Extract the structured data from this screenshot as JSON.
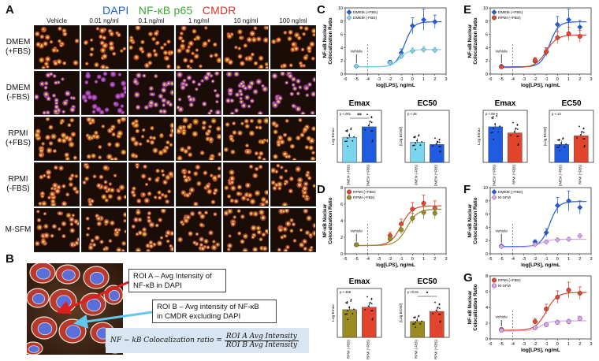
{
  "panels": {
    "A": "A",
    "B": "B",
    "C": "C",
    "D": "D",
    "E": "E",
    "F": "F",
    "G": "G"
  },
  "panel_a": {
    "stains": [
      {
        "label": "DAPI",
        "color": "#1f5fd6"
      },
      {
        "label": "NF-κB p65",
        "color": "#3aa935"
      },
      {
        "label": "CMDR",
        "color": "#e0302a"
      }
    ],
    "columns": [
      "Vehicle",
      "0.01 ng/ml",
      "0.1 ng/ml",
      "1 ng/ml",
      "10 ng/ml",
      "100 ng/ml"
    ],
    "rows": [
      [
        "DMEM",
        "(+FBS)"
      ],
      [
        "DMEM",
        "(-FBS)"
      ],
      [
        "RPMI",
        "(+FBS)"
      ],
      [
        "RPMI",
        "(-FBS)"
      ],
      [
        "M-SFM"
      ]
    ]
  },
  "panel_b": {
    "roi_a": [
      "ROI A – Avg Intensity of",
      "NF-κB in DAPI"
    ],
    "roi_b": [
      "ROI B – Avg intensity of NF-κB",
      "in CMDR excluding DAPI"
    ],
    "formula_left": "NF − kB Colocalization ratio =",
    "formula_num": "ROI A Avg Intensity",
    "formula_den": "ROI B Avg Intensity"
  },
  "chart_data": [
    {
      "panel": "C",
      "type": "line",
      "xlabel": "log[LPS], ng/mL",
      "ylabel": [
        "NF-κB Nuclear",
        "Colocalization Ratio"
      ],
      "xlim": [
        -6,
        3
      ],
      "ylim": [
        0,
        10
      ],
      "xticks": [
        -6,
        -5,
        -4,
        -3,
        -2,
        -1,
        0,
        1,
        2,
        3
      ],
      "yticks": [
        0,
        2,
        4,
        6,
        8,
        10
      ],
      "annotation": "Vehicle",
      "legend": "top-left",
      "series": [
        {
          "name": "DMEM (+FBS)",
          "color": "#1f5ce0",
          "marker": "diamond",
          "x": [
            -5,
            -2,
            -1,
            0,
            1,
            2
          ],
          "y": [
            1.2,
            1.8,
            3.2,
            7.3,
            8.2,
            7.9
          ],
          "err": [
            0.2,
            0.3,
            0.6,
            1.2,
            1.6,
            1.0
          ],
          "fit": {
            "bottom": 1.1,
            "top": 7.9,
            "ec50": -0.7,
            "hill": 1.1
          }
        },
        {
          "name": "DMEM (-FBS)",
          "color": "#7ad6ee",
          "marker": "diamond",
          "x": [
            -5,
            -2,
            -1,
            0,
            1,
            2
          ],
          "y": [
            1.2,
            1.7,
            2.7,
            3.5,
            3.7,
            3.6
          ],
          "err": [
            0.2,
            0.3,
            0.4,
            0.5,
            0.5,
            0.4
          ],
          "fit": {
            "bottom": 1.1,
            "top": 3.7,
            "ec50": -1.1,
            "hill": 1.1
          }
        }
      ]
    },
    {
      "panel": "C",
      "type": "bar",
      "title": "Emax",
      "ylabel": "Log Emax",
      "pvalue": "p <.001",
      "sig": "**",
      "categories": [
        "DMEM (-FBS)",
        "DMEM (+FBS)"
      ],
      "values": [
        0.58,
        0.82
      ],
      "colors": [
        "#7ad6ee",
        "#1f5ce0"
      ],
      "ylim": [
        0,
        1.2
      ]
    },
    {
      "panel": "C",
      "type": "bar",
      "title": "EC50",
      "ylabel": "[Log EC50]",
      "pvalue": "p <.25",
      "categories": [
        "DMEM (-FBS)",
        "DMEM (+FBS)"
      ],
      "values": [
        0.62,
        0.55
      ],
      "colors": [
        "#7ad6ee",
        "#1f5ce0"
      ],
      "ylim": [
        0,
        1.6
      ]
    },
    {
      "panel": "D",
      "type": "line",
      "xlabel": "log[LPS], ng/mL",
      "ylabel": [
        "NF-κB Nuclear",
        "Colocalization Ratio"
      ],
      "xlim": [
        -6,
        3
      ],
      "ylim": [
        0,
        8
      ],
      "xticks": [
        -6,
        -5,
        -4,
        -3,
        -2,
        -1,
        0,
        1,
        2,
        3
      ],
      "yticks": [
        0,
        2,
        4,
        6,
        8
      ],
      "annotation": "Vehicle",
      "legend": "top-left",
      "series": [
        {
          "name": "RPMI (+FBS)",
          "color": "#e2452d",
          "marker": "circle",
          "x": [
            -5,
            -2,
            -1,
            0,
            1,
            2
          ],
          "y": [
            1.1,
            2.2,
            3.6,
            5.4,
            6.1,
            5.5
          ],
          "err": [
            0.2,
            0.4,
            0.6,
            0.8,
            1.0,
            0.9
          ],
          "fit": {
            "bottom": 1.0,
            "top": 5.8,
            "ec50": -1.0,
            "hill": 0.9
          }
        },
        {
          "name": "RPMI (-FBS)",
          "color": "#9a8b22",
          "marker": "circle",
          "x": [
            -5,
            -2,
            -1,
            0,
            1,
            2
          ],
          "y": [
            1.1,
            1.8,
            2.9,
            4.3,
            5.0,
            4.9
          ],
          "err": [
            0.2,
            0.3,
            0.5,
            0.6,
            0.8,
            0.7
          ],
          "fit": {
            "bottom": 1.0,
            "top": 5.4,
            "ec50": -0.5,
            "hill": 0.9
          }
        }
      ]
    },
    {
      "panel": "D",
      "type": "bar",
      "title": "Emax",
      "ylabel": "Log Emax",
      "pvalue": "p <.456",
      "categories": [
        "RPMI (-FBS)",
        "RPMI (+FBS)"
      ],
      "values": [
        0.68,
        0.74
      ],
      "colors": [
        "#9a8b22",
        "#e2452d"
      ],
      "ylim": [
        0,
        1.2
      ]
    },
    {
      "panel": "D",
      "type": "bar",
      "title": "EC50",
      "ylabel": "[Log EC50]",
      "pvalue": "p <0.01",
      "sig": "*",
      "categories": [
        "RPMI (-FBS)",
        "RPMI (+FBS)"
      ],
      "values": [
        0.52,
        0.85
      ],
      "colors": [
        "#9a8b22",
        "#e2452d"
      ],
      "ylim": [
        0,
        1.6
      ]
    },
    {
      "panel": "E",
      "type": "line",
      "xlabel": "log[LPS], ng/mL",
      "ylabel": [
        "NF-κB Nuclear",
        "Colocalization Ratio"
      ],
      "xlim": [
        -6,
        3
      ],
      "ylim": [
        0,
        10
      ],
      "xticks": [
        -6,
        -5,
        -4,
        -3,
        -2,
        -1,
        0,
        1,
        2,
        3
      ],
      "yticks": [
        0,
        2,
        4,
        6,
        8,
        10
      ],
      "annotation": "Vehicle",
      "legend": "top-left",
      "series": [
        {
          "name": "DMEM (+FBS)",
          "color": "#1f5ce0",
          "marker": "diamond",
          "x": [
            -5,
            -2,
            -1,
            0,
            1,
            2
          ],
          "y": [
            1.2,
            1.9,
            3.3,
            7.5,
            8.2,
            7.1
          ],
          "err": [
            0.2,
            0.3,
            0.6,
            1.2,
            1.6,
            1.0
          ],
          "fit": {
            "bottom": 1.1,
            "top": 7.9,
            "ec50": -0.7,
            "hill": 1.1
          }
        },
        {
          "name": "RPMI (+FBS)",
          "color": "#e2452d",
          "marker": "circle",
          "x": [
            -5,
            -2,
            -1,
            0,
            1,
            2
          ],
          "y": [
            1.1,
            2.1,
            3.4,
            5.5,
            6.1,
            5.7
          ],
          "err": [
            0.2,
            0.4,
            0.6,
            0.9,
            1.0,
            0.9
          ],
          "fit": {
            "bottom": 1.0,
            "top": 5.9,
            "ec50": -1.0,
            "hill": 0.9
          }
        }
      ]
    },
    {
      "panel": "E",
      "type": "bar",
      "title": "Emax",
      "ylabel": "Log Emax",
      "pvalue": "p <.09",
      "categories": [
        "DMEM (+FBS)",
        "RPMI (+FBS)"
      ],
      "values": [
        0.82,
        0.68
      ],
      "colors": [
        "#1f5ce0",
        "#e2452d"
      ],
      "ylim": [
        0,
        1.2
      ]
    },
    {
      "panel": "E",
      "type": "bar",
      "title": "EC50",
      "ylabel": "[Log EC50]",
      "pvalue": "p <.13",
      "categories": [
        "DMEM (+FBS)",
        "RPMI (+FBS)"
      ],
      "values": [
        0.55,
        0.82
      ],
      "colors": [
        "#1f5ce0",
        "#e2452d"
      ],
      "ylim": [
        0,
        1.6
      ]
    },
    {
      "panel": "F",
      "type": "line",
      "xlabel": "log[LPS], ng/mL",
      "ylabel": [
        "NF-κB Nuclear",
        "Colocalization Ratio"
      ],
      "xlim": [
        -6,
        3
      ],
      "ylim": [
        0,
        10
      ],
      "xticks": [
        -6,
        -5,
        -4,
        -3,
        -2,
        -1,
        0,
        1,
        2,
        3
      ],
      "yticks": [
        0,
        2,
        4,
        6,
        8,
        10
      ],
      "annotation": "Vehicle",
      "legend": "top-left",
      "series": [
        {
          "name": "DMEM (+FBS)",
          "color": "#1f5ce0",
          "marker": "diamond",
          "x": [
            -5,
            -2,
            -1,
            0,
            1,
            2
          ],
          "y": [
            1.2,
            1.8,
            3.2,
            7.3,
            8.0,
            7.0
          ],
          "err": [
            0.2,
            0.3,
            0.6,
            1.2,
            1.5,
            1.0
          ],
          "fit": {
            "bottom": 1.1,
            "top": 7.9,
            "ec50": -0.7,
            "hill": 1.1
          }
        },
        {
          "name": "M-SFM",
          "color": "#d9a3f0",
          "marker": "diamond",
          "x": [
            -5,
            -2,
            -1,
            0,
            1,
            2
          ],
          "y": [
            1.1,
            1.4,
            1.8,
            2.1,
            2.2,
            2.7
          ],
          "err": [
            0.2,
            0.2,
            0.3,
            0.3,
            0.3,
            0.3
          ],
          "fit": {
            "bottom": 1.0,
            "top": 2.2,
            "ec50": -1.5,
            "hill": 1.0
          }
        }
      ]
    },
    {
      "panel": "G",
      "type": "line",
      "xlabel": "log[LPS], ng/mL",
      "ylabel": [
        "NF-κB Nuclear",
        "Colocalization Ratio"
      ],
      "xlim": [
        -6,
        3
      ],
      "ylim": [
        0,
        8
      ],
      "xticks": [
        -6,
        -5,
        -4,
        -3,
        -2,
        -1,
        0,
        1,
        2,
        3
      ],
      "yticks": [
        0,
        2,
        4,
        6,
        8
      ],
      "annotation": "Vehicle",
      "legend": "top-left",
      "series": [
        {
          "name": "RPMI (+FBS)",
          "color": "#e2452d",
          "marker": "circle",
          "x": [
            -5,
            -2,
            -1,
            0,
            1,
            2
          ],
          "y": [
            1.2,
            2.2,
            3.8,
            5.3,
            6.2,
            5.8
          ],
          "err": [
            0.2,
            0.4,
            0.6,
            0.8,
            1.0,
            0.8
          ],
          "fit": {
            "bottom": 1.1,
            "top": 5.9,
            "ec50": -1.0,
            "hill": 0.9
          }
        },
        {
          "name": "M-SFM",
          "color": "#d9a3f0",
          "marker": "circle",
          "x": [
            -5,
            -2,
            -1,
            0,
            1,
            2
          ],
          "y": [
            1.1,
            1.4,
            1.8,
            2.1,
            2.2,
            2.6
          ],
          "err": [
            0.2,
            0.2,
            0.3,
            0.3,
            0.3,
            0.3
          ],
          "fit": {
            "bottom": 1.0,
            "top": 2.3,
            "ec50": -1.5,
            "hill": 1.0
          }
        }
      ]
    }
  ]
}
